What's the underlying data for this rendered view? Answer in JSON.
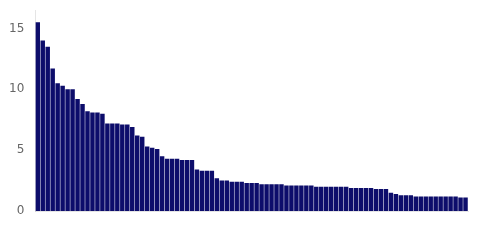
{
  "chart_data": {
    "type": "bar",
    "categories": [
      null,
      null,
      null,
      null,
      null,
      null,
      null,
      null,
      null,
      null,
      null,
      null,
      null,
      null,
      null,
      null,
      null,
      null,
      null,
      null,
      null,
      null,
      null,
      null,
      null,
      null,
      null,
      null,
      null,
      null,
      null,
      null,
      null,
      null,
      null,
      null,
      null,
      null,
      null,
      null,
      null,
      null,
      null,
      null,
      null,
      null,
      null,
      null,
      null,
      null,
      null,
      null,
      null,
      null,
      null,
      null,
      null,
      null,
      null,
      null,
      null,
      null,
      null,
      null,
      null,
      null,
      null,
      null,
      null,
      null,
      null,
      null,
      null,
      null,
      null,
      null,
      null,
      null,
      null,
      null,
      null,
      null,
      null,
      null,
      null,
      null,
      null
    ],
    "values": [
      15.5,
      14.0,
      13.5,
      11.7,
      10.5,
      10.3,
      10.0,
      10.0,
      9.2,
      8.8,
      8.2,
      8.1,
      8.1,
      8.0,
      7.2,
      7.2,
      7.2,
      7.1,
      7.1,
      6.9,
      6.2,
      6.1,
      5.3,
      5.2,
      5.1,
      4.5,
      4.3,
      4.3,
      4.3,
      4.2,
      4.2,
      4.2,
      3.4,
      3.3,
      3.3,
      3.3,
      2.7,
      2.5,
      2.5,
      2.4,
      2.4,
      2.4,
      2.3,
      2.3,
      2.3,
      2.2,
      2.2,
      2.2,
      2.2,
      2.2,
      2.1,
      2.1,
      2.1,
      2.1,
      2.1,
      2.1,
      2.0,
      2.0,
      2.0,
      2.0,
      2.0,
      2.0,
      2.0,
      1.9,
      1.9,
      1.9,
      1.9,
      1.9,
      1.8,
      1.8,
      1.8,
      1.5,
      1.4,
      1.3,
      1.3,
      1.3,
      1.2,
      1.2,
      1.2,
      1.2,
      1.2,
      1.2,
      1.2,
      1.2,
      1.2,
      1.1,
      1.1
    ],
    "color": "#0d0d6b",
    "ylim": [
      0,
      16.5
    ],
    "yticks": [
      0,
      5,
      10,
      15
    ],
    "grid": false,
    "tick_labels": "y"
  }
}
